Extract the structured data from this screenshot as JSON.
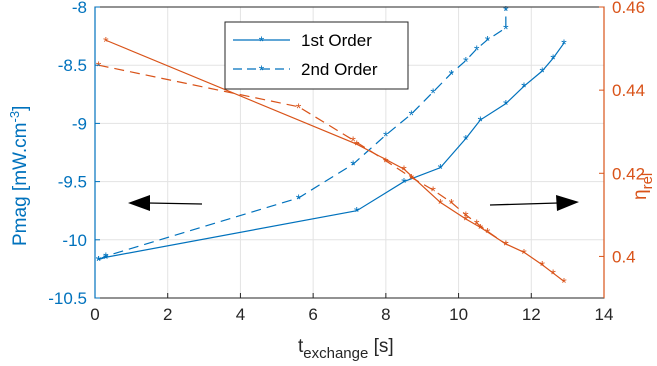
{
  "chart_data": {
    "type": "line",
    "x": {
      "label": "t",
      "label_subscript": "exchange",
      "label_unit": " [s]",
      "lim": [
        0,
        14
      ],
      "ticks": [
        0,
        2,
        4,
        6,
        8,
        10,
        12,
        14
      ],
      "tick_labels": [
        "0",
        "2",
        "4",
        "6",
        "8",
        "10",
        "12",
        "14"
      ]
    },
    "y_left": {
      "label": "Pmag [mW.cm",
      "label_superscript": "-3",
      "label_end": "]",
      "lim": [
        -10.5,
        -8
      ],
      "ticks": [
        -10.5,
        -10,
        -9.5,
        -9,
        -8.5,
        -8
      ],
      "tick_labels": [
        "-10.5",
        "-10",
        "-9.5",
        "-9",
        "-8.5",
        "-8"
      ],
      "color": "#0072BD"
    },
    "y_right": {
      "label": "η",
      "label_subscript": "rel",
      "lim": [
        0.39,
        0.46
      ],
      "ticks": [
        0.4,
        0.42,
        0.44,
        0.46
      ],
      "tick_labels": [
        "0.4",
        "0.42",
        "0.44",
        "0.46"
      ],
      "color": "#D95319"
    },
    "grid": true,
    "legend": {
      "position": "top-center",
      "entries": [
        {
          "name": "1st Order",
          "style": "solid"
        },
        {
          "name": "2nd Order",
          "style": "dashed"
        }
      ]
    },
    "series": [
      {
        "name": "1st Order",
        "axis": "left",
        "style": "solid",
        "color": "#0072BD",
        "x": [
          0.1,
          0.3,
          7.2,
          8.5,
          9.5,
          10.2,
          10.6,
          11.3,
          11.8,
          12.3,
          12.6,
          12.9
        ],
        "y": [
          -10.17,
          -10.15,
          -9.75,
          -9.5,
          -9.38,
          -9.13,
          -8.97,
          -8.83,
          -8.68,
          -8.55,
          -8.44,
          -8.31
        ]
      },
      {
        "name": "2nd Order",
        "axis": "left",
        "style": "dashed",
        "color": "#0072BD",
        "x": [
          0.1,
          0.3,
          5.6,
          7.1,
          8.0,
          8.7,
          9.3,
          9.8,
          10.2,
          10.5,
          10.8,
          11.3,
          11.3
        ],
        "y": [
          -10.17,
          -10.14,
          -9.64,
          -9.35,
          -9.1,
          -8.92,
          -8.73,
          -8.57,
          -8.46,
          -8.36,
          -8.28,
          -8.18,
          -8.02
        ]
      },
      {
        "name": "η rel (1st Order)",
        "axis": "right",
        "style": "solid",
        "color": "#D95319",
        "x": [
          0.3,
          7.2,
          8.5,
          9.5,
          10.2,
          10.6,
          11.3,
          11.8,
          12.3,
          12.6,
          12.9
        ],
        "y": [
          0.452,
          0.427,
          0.421,
          0.413,
          0.409,
          0.407,
          0.403,
          0.401,
          0.398,
          0.396,
          0.394
        ]
      },
      {
        "name": "η rel (2nd Order)",
        "axis": "right",
        "style": "dashed",
        "color": "#D95319",
        "x": [
          0.1,
          5.6,
          7.1,
          8.0,
          8.7,
          9.3,
          9.8,
          10.2,
          10.5,
          10.8,
          11.3
        ],
        "y": [
          0.446,
          0.436,
          0.428,
          0.423,
          0.419,
          0.416,
          0.413,
          0.41,
          0.408,
          0.406,
          0.403
        ]
      }
    ],
    "annotations": [
      {
        "type": "arrow",
        "direction": "left",
        "points_to": "left axis"
      },
      {
        "type": "arrow",
        "direction": "right",
        "points_to": "right axis"
      }
    ]
  }
}
